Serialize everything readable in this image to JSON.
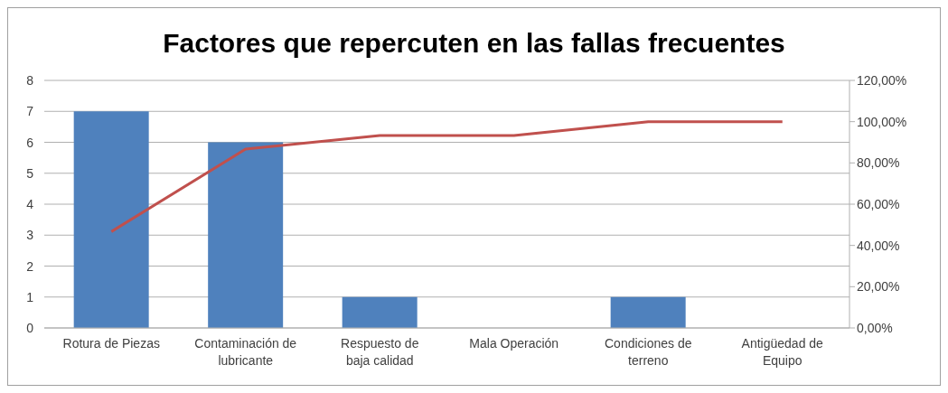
{
  "chart_data": {
    "type": "bar",
    "title": "Factores que repercuten en las fallas frecuentes",
    "categories": [
      "Rotura de Piezas",
      "Contaminación de lubricante",
      "Respuesto de baja calidad",
      "Mala Operación",
      "Condiciones de terreno",
      "Antigüedad de Equipo"
    ],
    "series": [
      {
        "color": "#4f81bd",
        "values": [
          7,
          6,
          1,
          0,
          1,
          0
        ]
      },
      {
        "type": "line",
        "axis": "y2",
        "color": "#c0504d",
        "values": [
          46.7,
          86.7,
          93.3,
          93.3,
          100,
          100
        ]
      }
    ],
    "ylim": [
      0,
      8
    ],
    "yticks": [
      0,
      1,
      2,
      3,
      4,
      5,
      6,
      7,
      8
    ],
    "y2lim": [
      0,
      120
    ],
    "y2ticks": [
      {
        "value": 0,
        "label": "0,00%"
      },
      {
        "value": 20,
        "label": "20,00%"
      },
      {
        "value": 40,
        "label": "40,00%"
      },
      {
        "value": 60,
        "label": "60,00%"
      },
      {
        "value": 80,
        "label": "80,00%"
      },
      {
        "value": 100,
        "label": "100,00%"
      },
      {
        "value": 120,
        "label": "120,00%"
      }
    ],
    "grid": "y",
    "legend": false,
    "marker": "none",
    "line_style": "solid"
  }
}
